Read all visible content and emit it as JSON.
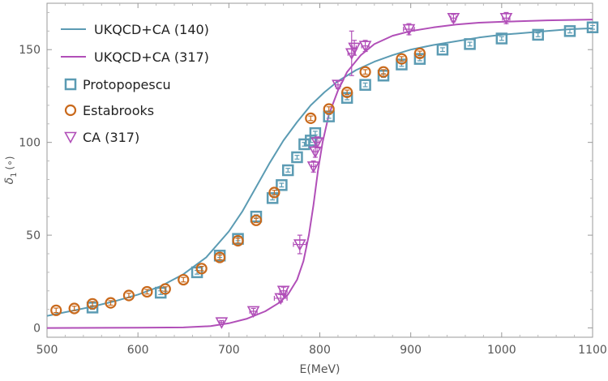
{
  "chart_data": {
    "type": "scatter",
    "title": "",
    "xlabel": "E(MeV)",
    "ylabel_main": "δ",
    "ylabel_sub": "1",
    "ylabel_unit": "(∘)",
    "xlim": [
      500,
      1100
    ],
    "ylim": [
      -5,
      175
    ],
    "xticks": [
      500,
      600,
      700,
      800,
      900,
      1000,
      1100
    ],
    "yticks": [
      0,
      50,
      100,
      150
    ],
    "grid": false,
    "legend_position": "top-left",
    "colors": {
      "teal": "#5b9bb3",
      "purple": "#b14fb8",
      "orange": "#c9691b"
    },
    "series": [
      {
        "name": "UKQCD+CA (140)",
        "kind": "line",
        "color": "#5b9bb3",
        "x": [
          500,
          525,
          550,
          575,
          600,
          625,
          650,
          675,
          700,
          715,
          730,
          745,
          760,
          775,
          790,
          805,
          820,
          840,
          860,
          880,
          900,
          925,
          950,
          975,
          1000,
          1025,
          1050,
          1075,
          1100
        ],
        "y": [
          6.5,
          9,
          11.5,
          14.5,
          18,
          22.5,
          29,
          38,
          52,
          63,
          76,
          89,
          101,
          111,
          120,
          127,
          133,
          139,
          143.5,
          147,
          150,
          152.5,
          154.5,
          156.5,
          158,
          159,
          160,
          161,
          161.5
        ]
      },
      {
        "name": "UKQCD+CA (317)",
        "kind": "line",
        "color": "#b14fb8",
        "x": [
          500,
          600,
          650,
          680,
          700,
          720,
          740,
          755,
          765,
          775,
          782,
          788,
          793,
          798,
          803,
          810,
          820,
          830,
          845,
          860,
          880,
          900,
          925,
          950,
          975,
          1000,
          1050,
          1100
        ],
        "y": [
          0,
          0.1,
          0.3,
          1,
          2.5,
          5,
          9,
          13.5,
          18,
          26,
          36,
          50,
          66,
          85,
          100,
          115,
          128,
          138,
          147,
          153,
          157.5,
          160,
          162,
          163.5,
          164.5,
          165,
          165.8,
          166.2
        ]
      },
      {
        "name": "Protopopescu",
        "kind": "square",
        "color": "#5b9bb3",
        "x": [
          550,
          625,
          665,
          690,
          710,
          730,
          748,
          758,
          765,
          775,
          783,
          790,
          795,
          810,
          830,
          850,
          870,
          890,
          910,
          935,
          965,
          1000,
          1040,
          1075,
          1100
        ],
        "y": [
          11,
          19,
          30,
          39,
          48,
          60,
          70,
          77,
          85,
          92,
          99,
          101,
          105,
          114,
          124,
          131,
          136,
          142,
          145,
          150,
          153,
          156,
          158,
          160,
          162
        ],
        "err": [
          1,
          1,
          1,
          1,
          1,
          1,
          1,
          1,
          1,
          1,
          1,
          1,
          1,
          1,
          1,
          1,
          1,
          1,
          1,
          1,
          1,
          1,
          1,
          1,
          1
        ]
      },
      {
        "name": "Estabrooks",
        "kind": "circle",
        "color": "#c9691b",
        "x": [
          510,
          530,
          550,
          570,
          590,
          610,
          630,
          650,
          670,
          690,
          710,
          730,
          750,
          790,
          810,
          830,
          850,
          870,
          890,
          910
        ],
        "y": [
          9.5,
          10.5,
          13,
          13.5,
          17.5,
          19.5,
          21,
          26,
          32,
          38,
          47,
          58,
          73,
          113,
          118,
          127,
          138,
          138,
          145,
          148
        ],
        "err": [
          1.2,
          1.2,
          1.2,
          1.2,
          1.2,
          1.2,
          1.2,
          1.2,
          1.2,
          1.2,
          1.2,
          1.2,
          1.2,
          1.2,
          1.2,
          1.2,
          1.2,
          1.2,
          1.2,
          1.2
        ]
      },
      {
        "name": "CA (317)",
        "kind": "triangle",
        "color": "#b14fb8",
        "x": [
          692,
          727,
          757,
          760,
          778,
          793,
          795,
          797,
          820,
          835,
          838,
          850,
          898,
          947,
          1005
        ],
        "y": [
          3,
          9,
          16,
          20,
          45,
          87,
          95,
          100,
          131,
          148,
          151,
          152,
          161,
          167,
          167
        ],
        "err": [
          1,
          1.5,
          2,
          2,
          5,
          3,
          3,
          3,
          2,
          12,
          4,
          3,
          3,
          2,
          3
        ],
        "xerr": [
          2,
          4,
          7,
          4,
          7,
          2,
          2,
          2,
          3,
          4,
          2,
          4,
          6,
          3,
          4
        ]
      }
    ]
  }
}
